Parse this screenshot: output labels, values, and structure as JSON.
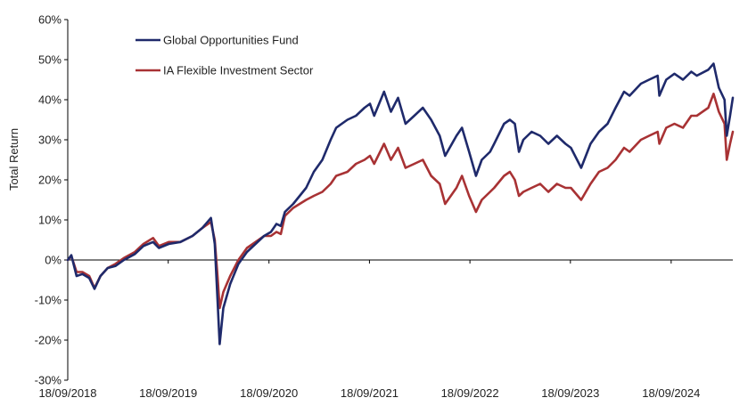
{
  "chart_data": {
    "type": "line",
    "ylabel": "Total Return",
    "ylim": [
      -30,
      60
    ],
    "y_ticks": [
      -30,
      -20,
      -10,
      0,
      10,
      20,
      30,
      40,
      50,
      60
    ],
    "y_tick_labels": [
      "-30%",
      "-20%",
      "-10%",
      "0%",
      "10%",
      "20%",
      "30%",
      "40%",
      "50%",
      "60%"
    ],
    "x_range": [
      "2018-09-18",
      "2025-04-30"
    ],
    "x_ticks": [
      "2018-09-18",
      "2019-09-18",
      "2020-09-18",
      "2021-09-18",
      "2022-09-18",
      "2023-09-18",
      "2024-09-18"
    ],
    "x_tick_labels": [
      "18/09/2018",
      "18/09/2019",
      "18/09/2020",
      "18/09/2021",
      "18/09/2022",
      "18/09/2023",
      "18/09/2024"
    ],
    "grid": false,
    "legend_position": "top-left",
    "series": [
      {
        "name": "Global Opportunities Fund",
        "color": "#1f2a6b",
        "points": [
          [
            "2018-09-18",
            0
          ],
          [
            "2018-10-01",
            1.2
          ],
          [
            "2018-10-20",
            -4
          ],
          [
            "2018-11-10",
            -3.5
          ],
          [
            "2018-12-05",
            -4.5
          ],
          [
            "2018-12-24",
            -7.2
          ],
          [
            "2019-01-15",
            -4
          ],
          [
            "2019-02-10",
            -2
          ],
          [
            "2019-03-10",
            -1.5
          ],
          [
            "2019-04-10",
            0
          ],
          [
            "2019-05-20",
            1.5
          ],
          [
            "2019-06-20",
            3.5
          ],
          [
            "2019-07-25",
            4.5
          ],
          [
            "2019-08-15",
            3
          ],
          [
            "2019-09-20",
            4
          ],
          [
            "2019-11-01",
            4.5
          ],
          [
            "2019-12-15",
            6
          ],
          [
            "2020-01-20",
            8
          ],
          [
            "2020-02-20",
            10.5
          ],
          [
            "2020-03-05",
            4
          ],
          [
            "2020-03-15",
            -10
          ],
          [
            "2020-03-23",
            -21
          ],
          [
            "2020-04-05",
            -12
          ],
          [
            "2020-04-30",
            -6
          ],
          [
            "2020-05-30",
            -1
          ],
          [
            "2020-06-30",
            2
          ],
          [
            "2020-07-31",
            4
          ],
          [
            "2020-08-31",
            6
          ],
          [
            "2020-09-25",
            7
          ],
          [
            "2020-10-15",
            9
          ],
          [
            "2020-10-31",
            8.5
          ],
          [
            "2020-11-15",
            12
          ],
          [
            "2020-12-15",
            14
          ],
          [
            "2021-01-31",
            18
          ],
          [
            "2021-02-28",
            22
          ],
          [
            "2021-03-31",
            25
          ],
          [
            "2021-04-30",
            30
          ],
          [
            "2021-05-20",
            33
          ],
          [
            "2021-06-30",
            35
          ],
          [
            "2021-07-31",
            36
          ],
          [
            "2021-08-31",
            38
          ],
          [
            "2021-09-20",
            39
          ],
          [
            "2021-10-05",
            36
          ],
          [
            "2021-11-10",
            42
          ],
          [
            "2021-12-05",
            37
          ],
          [
            "2021-12-31",
            40.5
          ],
          [
            "2022-01-27",
            34
          ],
          [
            "2022-02-28",
            36
          ],
          [
            "2022-03-31",
            38
          ],
          [
            "2022-04-30",
            35
          ],
          [
            "2022-05-31",
            31
          ],
          [
            "2022-06-20",
            26
          ],
          [
            "2022-07-31",
            31
          ],
          [
            "2022-08-20",
            33
          ],
          [
            "2022-09-15",
            27
          ],
          [
            "2022-10-10",
            21
          ],
          [
            "2022-10-31",
            25
          ],
          [
            "2022-11-30",
            27
          ],
          [
            "2022-12-15",
            29
          ],
          [
            "2023-01-20",
            34
          ],
          [
            "2023-02-10",
            35
          ],
          [
            "2023-02-28",
            34
          ],
          [
            "2023-03-15",
            27
          ],
          [
            "2023-03-31",
            30
          ],
          [
            "2023-04-30",
            32
          ],
          [
            "2023-05-31",
            31
          ],
          [
            "2023-06-30",
            29
          ],
          [
            "2023-07-31",
            31
          ],
          [
            "2023-08-31",
            29
          ],
          [
            "2023-09-20",
            28
          ],
          [
            "2023-10-27",
            23
          ],
          [
            "2023-11-30",
            29
          ],
          [
            "2023-12-31",
            32
          ],
          [
            "2024-01-31",
            34
          ],
          [
            "2024-02-29",
            38
          ],
          [
            "2024-03-31",
            42
          ],
          [
            "2024-04-20",
            41
          ],
          [
            "2024-05-31",
            44
          ],
          [
            "2024-06-30",
            45
          ],
          [
            "2024-07-31",
            46
          ],
          [
            "2024-08-06",
            41
          ],
          [
            "2024-08-31",
            45
          ],
          [
            "2024-09-30",
            46.5
          ],
          [
            "2024-10-31",
            45
          ],
          [
            "2024-11-30",
            47
          ],
          [
            "2024-12-20",
            46
          ],
          [
            "2025-01-31",
            47.5
          ],
          [
            "2025-02-19",
            49
          ],
          [
            "2025-03-10",
            43
          ],
          [
            "2025-03-31",
            40
          ],
          [
            "2025-04-08",
            31
          ],
          [
            "2025-04-20",
            36
          ],
          [
            "2025-04-30",
            40.5
          ]
        ]
      },
      {
        "name": "IA Flexible Investment Sector",
        "color": "#a83234",
        "points": [
          [
            "2018-09-18",
            0
          ],
          [
            "2018-10-01",
            1
          ],
          [
            "2018-10-20",
            -3
          ],
          [
            "2018-11-10",
            -3
          ],
          [
            "2018-12-05",
            -4
          ],
          [
            "2018-12-24",
            -7
          ],
          [
            "2019-01-15",
            -4
          ],
          [
            "2019-02-10",
            -2
          ],
          [
            "2019-03-10",
            -1
          ],
          [
            "2019-04-10",
            0.5
          ],
          [
            "2019-05-20",
            2
          ],
          [
            "2019-06-20",
            4
          ],
          [
            "2019-07-25",
            5.5
          ],
          [
            "2019-08-15",
            3.5
          ],
          [
            "2019-09-20",
            4.5
          ],
          [
            "2019-11-01",
            4.5
          ],
          [
            "2019-12-15",
            6
          ],
          [
            "2020-01-20",
            8
          ],
          [
            "2020-02-20",
            9.5
          ],
          [
            "2020-03-05",
            5
          ],
          [
            "2020-03-15",
            -4
          ],
          [
            "2020-03-23",
            -12
          ],
          [
            "2020-04-05",
            -8
          ],
          [
            "2020-04-30",
            -4
          ],
          [
            "2020-05-30",
            0
          ],
          [
            "2020-06-30",
            3
          ],
          [
            "2020-07-31",
            4.5
          ],
          [
            "2020-08-31",
            6
          ],
          [
            "2020-09-25",
            6
          ],
          [
            "2020-10-15",
            7
          ],
          [
            "2020-10-31",
            6.5
          ],
          [
            "2020-11-15",
            11
          ],
          [
            "2020-12-15",
            13
          ],
          [
            "2021-01-31",
            15
          ],
          [
            "2021-02-28",
            16
          ],
          [
            "2021-03-31",
            17
          ],
          [
            "2021-04-30",
            19
          ],
          [
            "2021-05-20",
            21
          ],
          [
            "2021-06-30",
            22
          ],
          [
            "2021-07-31",
            24
          ],
          [
            "2021-08-31",
            25
          ],
          [
            "2021-09-20",
            26
          ],
          [
            "2021-10-05",
            24
          ],
          [
            "2021-11-10",
            29
          ],
          [
            "2021-12-05",
            25
          ],
          [
            "2021-12-31",
            28
          ],
          [
            "2022-01-27",
            23
          ],
          [
            "2022-02-28",
            24
          ],
          [
            "2022-03-31",
            25
          ],
          [
            "2022-04-30",
            21
          ],
          [
            "2022-05-31",
            19
          ],
          [
            "2022-06-20",
            14
          ],
          [
            "2022-07-31",
            18
          ],
          [
            "2022-08-20",
            21
          ],
          [
            "2022-09-15",
            16
          ],
          [
            "2022-10-10",
            12
          ],
          [
            "2022-10-31",
            15
          ],
          [
            "2022-11-30",
            17
          ],
          [
            "2022-12-15",
            18
          ],
          [
            "2023-01-20",
            21
          ],
          [
            "2023-02-10",
            22
          ],
          [
            "2023-02-28",
            20
          ],
          [
            "2023-03-15",
            16
          ],
          [
            "2023-03-31",
            17
          ],
          [
            "2023-04-30",
            18
          ],
          [
            "2023-05-31",
            19
          ],
          [
            "2023-06-30",
            17
          ],
          [
            "2023-07-31",
            19
          ],
          [
            "2023-08-31",
            18
          ],
          [
            "2023-09-20",
            18
          ],
          [
            "2023-10-27",
            15
          ],
          [
            "2023-11-30",
            19
          ],
          [
            "2023-12-31",
            22
          ],
          [
            "2024-01-31",
            23
          ],
          [
            "2024-02-29",
            25
          ],
          [
            "2024-03-31",
            28
          ],
          [
            "2024-04-20",
            27
          ],
          [
            "2024-05-31",
            30
          ],
          [
            "2024-06-30",
            31
          ],
          [
            "2024-07-31",
            32
          ],
          [
            "2024-08-06",
            29
          ],
          [
            "2024-08-31",
            33
          ],
          [
            "2024-09-30",
            34
          ],
          [
            "2024-10-31",
            33
          ],
          [
            "2024-11-30",
            36
          ],
          [
            "2024-12-20",
            36
          ],
          [
            "2025-01-31",
            38
          ],
          [
            "2025-02-19",
            41.5
          ],
          [
            "2025-03-10",
            37
          ],
          [
            "2025-03-31",
            34
          ],
          [
            "2025-04-08",
            25
          ],
          [
            "2025-04-20",
            29
          ],
          [
            "2025-04-30",
            32
          ]
        ]
      }
    ]
  }
}
